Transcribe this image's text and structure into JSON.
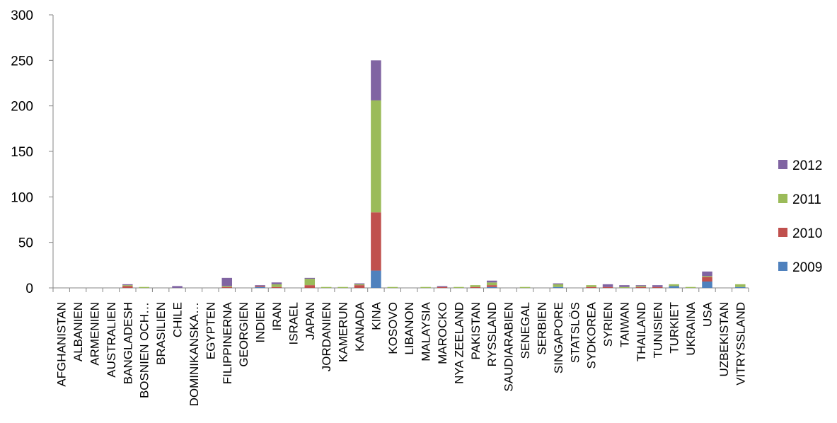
{
  "chart_data": {
    "type": "bar",
    "stacked": true,
    "title": "",
    "xlabel": "",
    "ylabel": "",
    "ylim": [
      0,
      300
    ],
    "yticks": [
      0,
      50,
      100,
      150,
      200,
      250,
      300
    ],
    "grid": false,
    "legend_position": "right",
    "categories": [
      "AFGHANISTAN",
      "ALBANIEN",
      "ARMENIEN",
      "AUSTRALIEN",
      "BANGLADESH",
      "BOSNIEN OCH…",
      "BRASILIEN",
      "CHILE",
      "DOMINIKANSKA…",
      "EGYPTEN",
      "FILIPPINERNA",
      "GEORGIEN",
      "INDIEN",
      "IRAN",
      "ISRAEL",
      "JAPAN",
      "JORDANIEN",
      "KAMERUN",
      "KANADA",
      "KINA",
      "KOSOVO",
      "LIBANON",
      "MALAYSIA",
      "MAROCKO",
      "NYA ZEELAND",
      "PAKISTAN",
      "RYSSLAND",
      "SAUDIARABIEN",
      "SENEGAL",
      "SERBIEN",
      "SINGAPORE",
      "STATSLÖS",
      "SYDKOREA",
      "SYRIEN",
      "TAIWAN",
      "THAILAND",
      "TUNISIEN",
      "TURKIET",
      "UKRAINA",
      "USA",
      "UZBEKISTAN",
      "VITRYSSLAND"
    ],
    "series": [
      {
        "name": "2009",
        "color": "#4f81bd",
        "values": [
          0,
          0,
          0,
          0,
          0,
          0,
          0,
          0,
          0,
          0,
          0,
          0,
          1,
          0,
          0,
          0,
          0,
          0,
          0,
          19,
          0,
          0,
          0,
          0,
          0,
          0,
          1,
          0,
          0,
          0,
          1,
          0,
          0,
          0,
          0,
          0,
          0,
          2,
          0,
          7,
          0,
          1
        ]
      },
      {
        "name": "2010",
        "color": "#c0504d",
        "values": [
          0,
          0,
          0,
          0,
          2,
          0,
          0,
          0,
          0,
          0,
          1,
          0,
          1,
          1,
          0,
          3,
          0,
          0,
          3,
          64,
          0,
          0,
          0,
          1,
          0,
          1,
          2,
          0,
          0,
          0,
          0,
          0,
          1,
          1,
          0,
          1,
          1,
          0,
          0,
          5,
          0,
          0
        ]
      },
      {
        "name": "2011",
        "color": "#9bbb59",
        "values": [
          0,
          0,
          0,
          0,
          1,
          1,
          0,
          0,
          0,
          0,
          1,
          0,
          0,
          3,
          0,
          7,
          1,
          1,
          1,
          123,
          1,
          0,
          1,
          0,
          1,
          2,
          3,
          0,
          1,
          0,
          3,
          0,
          2,
          0,
          1,
          1,
          0,
          2,
          1,
          1,
          0,
          3
        ]
      },
      {
        "name": "2012",
        "color": "#8064a2",
        "values": [
          0,
          0,
          0,
          0,
          1,
          0,
          0,
          2,
          0,
          0,
          9,
          0,
          1,
          2,
          0,
          1,
          0,
          0,
          1,
          44,
          0,
          0,
          0,
          1,
          0,
          0,
          2,
          0,
          0,
          0,
          1,
          0,
          0,
          3,
          2,
          1,
          2,
          0,
          0,
          5,
          0,
          0
        ]
      }
    ]
  }
}
